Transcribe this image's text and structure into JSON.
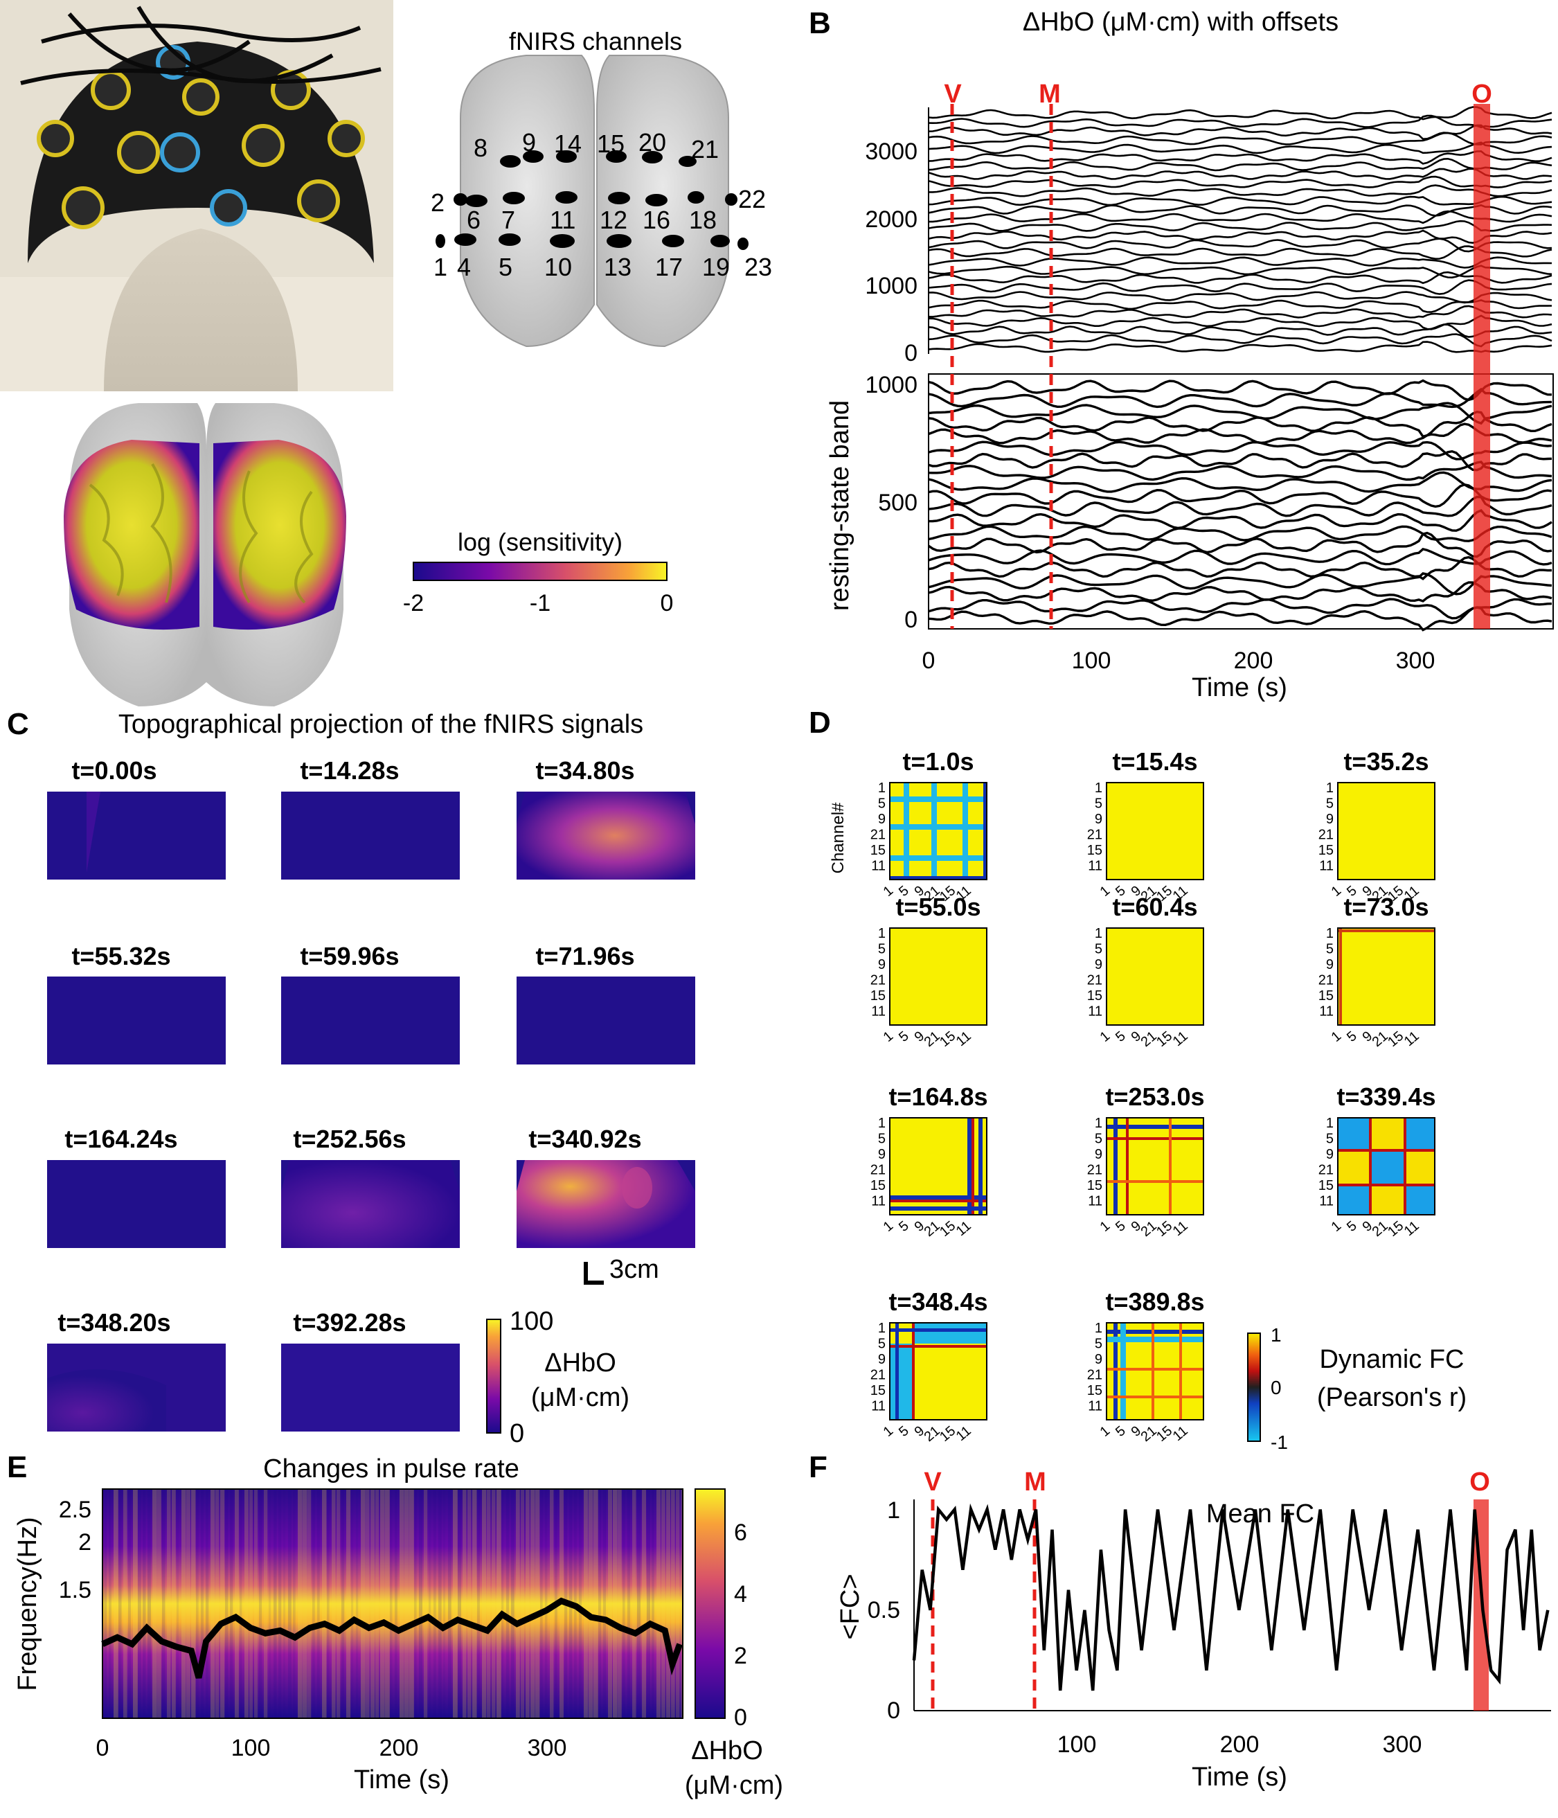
{
  "panels": {
    "a": "A",
    "b": "B",
    "c": "C",
    "d": "D",
    "e": "E",
    "f": "F"
  },
  "panel_a": {
    "channels_title": "fNIRS channels",
    "channel_labels": [
      "1",
      "2",
      "4",
      "5",
      "6",
      "7",
      "8",
      "9",
      "10",
      "11",
      "12",
      "13",
      "14",
      "15",
      "16",
      "17",
      "18",
      "19",
      "20",
      "21",
      "22",
      "23"
    ],
    "colorbar": {
      "title": "log  (sensitivity)",
      "ticks": [
        "-2",
        "-1",
        "0"
      ]
    }
  },
  "panel_b": {
    "title": "ΔHbO (μM·cm) with offsets",
    "event_markers": [
      "V",
      "M",
      "O"
    ],
    "ylabel": "resting-state band",
    "xlabel": "Time (s)",
    "upper_yticks": [
      "0",
      "1000",
      "2000",
      "3000"
    ],
    "lower_yticks": [
      "0",
      "500",
      "1000"
    ],
    "xticks": [
      "0",
      "100",
      "200",
      "300"
    ]
  },
  "panel_c": {
    "title": "Topographical projection of the fNIRS signals",
    "frames": [
      "t=0.00s",
      "t=14.28s",
      "t=34.80s",
      "t=55.32s",
      "t=59.96s",
      "t=71.96s",
      "t=164.24s",
      "t=252.56s",
      "t=340.92s",
      "t=348.20s",
      "t=392.28s"
    ],
    "scalebar": "3cm",
    "colorbar": {
      "ticks": [
        "100",
        "0"
      ],
      "label_line1": "ΔHbO",
      "label_line2": "(μM·cm)"
    }
  },
  "panel_d": {
    "frames": [
      "t=1.0s",
      "t=15.4s",
      "t=35.2s",
      "t=55.0s",
      "t=60.4s",
      "t=73.0s",
      "t=164.8s",
      "t=253.0s",
      "t=339.4s",
      "t=348.4s",
      "t=389.8s"
    ],
    "ylabel": "Channel#",
    "ticks": [
      "1",
      "5",
      "9",
      "21",
      "15",
      "11"
    ],
    "colorbar": {
      "ticks": [
        "1",
        "0",
        "-1"
      ],
      "label_line1": "Dynamic FC",
      "label_line2": "(Pearson's r)"
    }
  },
  "panel_e": {
    "title": "Changes in pulse rate",
    "ylabel": "Frequency(Hz)",
    "xlabel": "Time (s)",
    "yticks": [
      "1.5",
      "2",
      "2.5"
    ],
    "xticks": [
      "0",
      "100",
      "200",
      "300"
    ],
    "colorbar": {
      "ticks": [
        "0",
        "2",
        "4",
        "6"
      ],
      "label_line1": "ΔHbO",
      "label_line2": "(μM·cm)"
    }
  },
  "chart_data": [
    {
      "type": "line",
      "title": "Changes in pulse rate",
      "xlabel": "Time (s)",
      "ylabel": "Frequency(Hz)",
      "xlim": [
        0,
        392
      ],
      "ylim": [
        1.05,
        2.75
      ],
      "x": [
        0,
        10,
        20,
        30,
        40,
        50,
        60,
        65,
        70,
        80,
        90,
        100,
        110,
        120,
        130,
        140,
        150,
        160,
        170,
        180,
        190,
        200,
        210,
        220,
        230,
        240,
        250,
        260,
        270,
        280,
        290,
        300,
        310,
        320,
        330,
        340,
        350,
        360,
        370,
        380,
        385,
        390
      ],
      "series": [
        {
          "values": [
            1.6,
            1.65,
            1.6,
            1.72,
            1.62,
            1.58,
            1.55,
            1.35,
            1.62,
            1.75,
            1.8,
            1.72,
            1.68,
            1.7,
            1.65,
            1.72,
            1.75,
            1.7,
            1.78,
            1.72,
            1.76,
            1.7,
            1.75,
            1.8,
            1.72,
            1.78,
            1.74,
            1.7,
            1.82,
            1.75,
            1.8,
            1.85,
            1.92,
            1.88,
            1.8,
            1.78,
            1.72,
            1.68,
            1.75,
            1.7,
            1.45,
            1.6
          ]
        }
      ]
    },
    {
      "type": "line",
      "title": "Mean FC",
      "xlabel": "Time (s)",
      "ylabel": "<FC>",
      "xlim": [
        0,
        392
      ],
      "ylim": [
        0,
        1.05
      ],
      "x": [
        0,
        5,
        10,
        15,
        20,
        25,
        30,
        35,
        40,
        45,
        50,
        55,
        60,
        65,
        70,
        75,
        80,
        85,
        90,
        95,
        100,
        105,
        110,
        115,
        120,
        125,
        130,
        140,
        150,
        160,
        170,
        180,
        190,
        200,
        210,
        220,
        230,
        240,
        250,
        260,
        270,
        280,
        290,
        300,
        310,
        320,
        330,
        340,
        345,
        350,
        355,
        360,
        365,
        370,
        375,
        380,
        385,
        390
      ],
      "series": [
        {
          "values": [
            0.25,
            0.7,
            0.5,
            1.0,
            0.95,
            1.0,
            0.7,
            1.0,
            0.9,
            1.0,
            0.8,
            1.0,
            0.75,
            1.0,
            0.85,
            1.0,
            0.3,
            0.9,
            0.1,
            0.6,
            0.2,
            0.5,
            0.1,
            0.8,
            0.4,
            0.2,
            1.0,
            0.3,
            1.0,
            0.4,
            1.0,
            0.2,
            1.0,
            0.5,
            1.0,
            0.3,
            1.0,
            0.4,
            1.0,
            0.2,
            1.0,
            0.5,
            1.0,
            0.3,
            0.9,
            0.2,
            1.0,
            0.2,
            1.0,
            0.5,
            0.2,
            0.15,
            0.8,
            0.9,
            0.4,
            0.9,
            0.3,
            0.5
          ]
        }
      ]
    }
  ],
  "panel_f": {
    "title": "Mean FC",
    "event_markers": [
      "V",
      "M",
      "O"
    ],
    "ylabel": "<FC>",
    "xlabel": "Time (s)",
    "yticks": [
      "0",
      "0.5",
      "1"
    ],
    "xticks": [
      "100",
      "200",
      "300"
    ]
  },
  "colors": {
    "event_red": "#e8201a",
    "trace": "#000000",
    "plasma_dark": "#1a0a8c",
    "plasma_bright": "#f8f526"
  }
}
